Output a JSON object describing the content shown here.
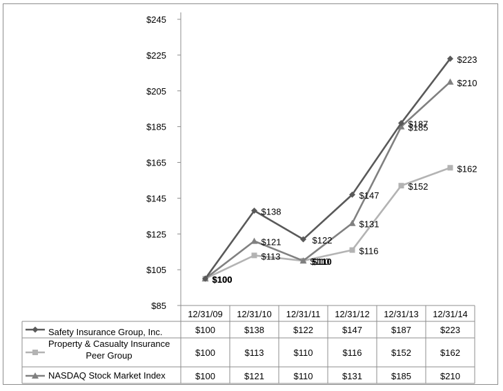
{
  "chart_data": {
    "type": "line",
    "title": "",
    "xlabel": "",
    "ylabel": "",
    "categories": [
      "12/31/09",
      "12/31/10",
      "12/31/11",
      "12/31/12",
      "12/31/13",
      "12/31/14"
    ],
    "ylim": [
      85,
      245
    ],
    "yticks": [
      85,
      105,
      125,
      145,
      165,
      185,
      205,
      225,
      245
    ],
    "ytick_labels": [
      "$85",
      "$105",
      "$125",
      "$145",
      "$165",
      "$185",
      "$205",
      "$225",
      "$245"
    ],
    "grid": false,
    "legend": "data-table",
    "series": [
      {
        "name": "Safety Insurance Group, Inc.",
        "values": [
          100,
          138,
          122,
          147,
          187,
          223
        ],
        "labels": [
          "$100",
          "$138",
          "$122",
          "$147",
          "$187",
          "$223"
        ],
        "table_values": [
          "$100",
          "$138",
          "$122",
          "$147",
          "$187",
          "$223"
        ],
        "marker": "diamond",
        "color": "#595959"
      },
      {
        "name": "Property & Casualty Insurance Peer Group",
        "name_lines": [
          "Property & Casualty Insurance",
          "Peer Group"
        ],
        "values": [
          100,
          113,
          110,
          116,
          152,
          162
        ],
        "labels": [
          "$100",
          "$113",
          "$110",
          "$116",
          "$152",
          "$162"
        ],
        "table_values": [
          "$100",
          "$113",
          "$110",
          "$116",
          "$152",
          "$162"
        ],
        "marker": "square",
        "color": "#b3b3b3"
      },
      {
        "name": "NASDAQ Stock Market Index",
        "values": [
          100,
          121,
          110,
          131,
          185,
          210
        ],
        "labels": [
          "$100",
          "$121",
          "$110",
          "$131",
          "$185",
          "$210"
        ],
        "table_values": [
          "$100",
          "$121",
          "$110",
          "$131",
          "$185",
          "$210"
        ],
        "marker": "triangle",
        "color": "#808080"
      }
    ]
  }
}
